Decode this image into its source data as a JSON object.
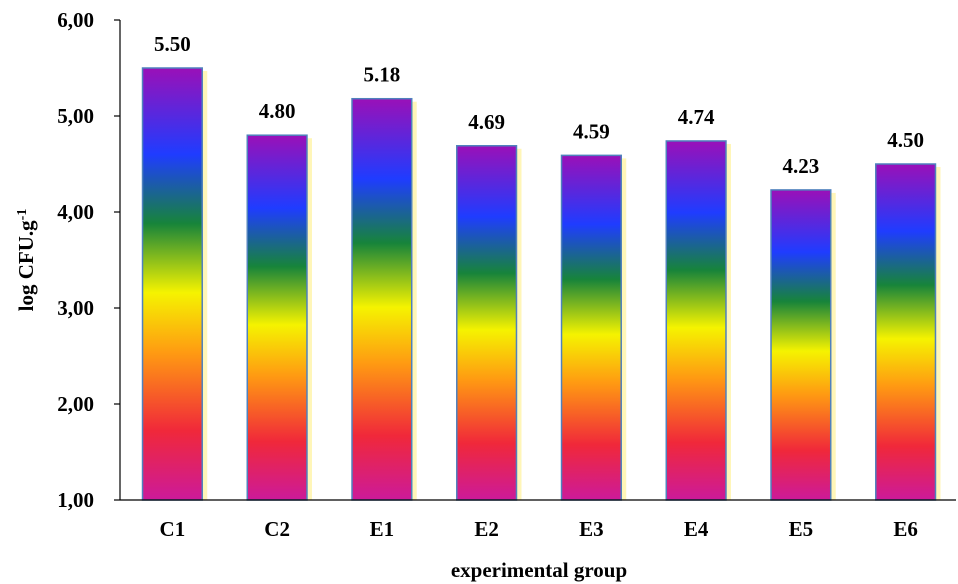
{
  "chart_data": {
    "type": "bar",
    "title": "",
    "xlabel": "experimental group",
    "ylabel": {
      "main": "log CFU.g",
      "superscript": "-1"
    },
    "categories": [
      "C1",
      "C2",
      "E1",
      "E2",
      "E3",
      "E4",
      "E5",
      "E6"
    ],
    "values": [
      5.5,
      4.8,
      5.18,
      4.69,
      4.59,
      4.74,
      4.23,
      4.5
    ],
    "data_labels": [
      "5.50",
      "4.80",
      "5.18",
      "4.69",
      "4.59",
      "4.74",
      "4.23",
      "4.50"
    ],
    "ylim": [
      1,
      6
    ],
    "yticks": [
      1,
      2,
      3,
      4,
      5,
      6
    ],
    "ytick_labels": [
      "1,00",
      "2,00",
      "3,00",
      "4,00",
      "5,00",
      "6,00"
    ],
    "grid": false,
    "legend": "none",
    "bar_fill": "rainbow-gradient",
    "bar_border_color": "#4f81bd",
    "bar_shadow_color": "#fff5b0",
    "gradient_colors": [
      "#cc00cc",
      "#ff0000",
      "#ff9900",
      "#ffff00",
      "#008000",
      "#0000ff",
      "#9900cc"
    ]
  }
}
